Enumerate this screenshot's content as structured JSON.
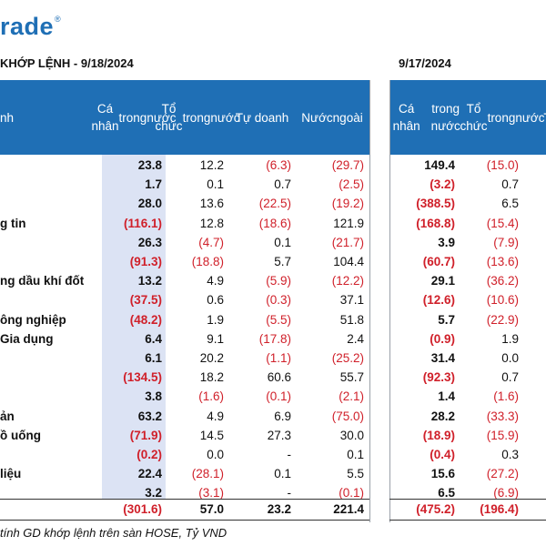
{
  "logo": "rade",
  "logo_mark": "®",
  "title_left": "KHỚP LỆNH - 9/18/2024",
  "title_right": "9/17/2024",
  "headers_left": [
    {
      "lines": [
        "nh"
      ]
    },
    {
      "lines": [
        "Cá nhân",
        "trong",
        "nước"
      ]
    },
    {
      "lines": [
        "Tổ chức",
        "trong",
        "nước"
      ]
    },
    {
      "lines": [
        "Tự doanh"
      ]
    },
    {
      "lines": [
        "Nước",
        "ngoài"
      ]
    }
  ],
  "headers_right": [
    {
      "lines": [
        "Cá nhân",
        "trong nước"
      ]
    },
    {
      "lines": [
        "Tổ chức",
        "trong",
        "nước"
      ]
    },
    {
      "lines": [
        "Tự"
      ]
    }
  ],
  "rows": [
    {
      "label": "",
      "v": [
        "23.8",
        "12.2",
        "(6.3)",
        "(29.7)"
      ],
      "p": [
        "149.4",
        "(15.0)"
      ]
    },
    {
      "label": "",
      "v": [
        "1.7",
        "0.1",
        "0.7",
        "(2.5)"
      ],
      "p": [
        "(3.2)",
        "0.7"
      ]
    },
    {
      "label": "",
      "v": [
        "28.0",
        "13.6",
        "(22.5)",
        "(19.2)"
      ],
      "p": [
        "(388.5)",
        "6.5"
      ]
    },
    {
      "label": "g tin",
      "v": [
        "(116.1)",
        "12.8",
        "(18.6)",
        "121.9"
      ],
      "p": [
        "(168.8)",
        "(15.4)"
      ]
    },
    {
      "label": "",
      "v": [
        "26.3",
        "(4.7)",
        "0.1",
        "(21.7)"
      ],
      "p": [
        "3.9",
        "(7.9)"
      ]
    },
    {
      "label": "",
      "v": [
        "(91.3)",
        "(18.8)",
        "5.7",
        "104.4"
      ],
      "p": [
        "(60.7)",
        "(13.6)"
      ]
    },
    {
      "label": "ng dầu khí đốt",
      "v": [
        "13.2",
        "4.9",
        "(5.9)",
        "(12.2)"
      ],
      "p": [
        "29.1",
        "(36.2)"
      ]
    },
    {
      "label": "",
      "v": [
        "(37.5)",
        "0.6",
        "(0.3)",
        "37.1"
      ],
      "p": [
        "(12.6)",
        "(10.6)"
      ]
    },
    {
      "label": "ông nghiệp",
      "v": [
        "(48.2)",
        "1.9",
        "(5.5)",
        "51.8"
      ],
      "p": [
        "5.7",
        "(22.9)"
      ]
    },
    {
      "label": "Gia dụng",
      "v": [
        "6.4",
        "9.1",
        "(17.8)",
        "2.4"
      ],
      "p": [
        "(0.9)",
        "1.9"
      ]
    },
    {
      "label": "",
      "v": [
        "6.1",
        "20.2",
        "(1.1)",
        "(25.2)"
      ],
      "p": [
        "31.4",
        "0.0"
      ]
    },
    {
      "label": "",
      "v": [
        "(134.5)",
        "18.2",
        "60.6",
        "55.7"
      ],
      "p": [
        "(92.3)",
        "0.7"
      ]
    },
    {
      "label": "",
      "v": [
        "3.8",
        "(1.6)",
        "(0.1)",
        "(2.1)"
      ],
      "p": [
        "1.4",
        "(1.6)"
      ]
    },
    {
      "label": "ản",
      "v": [
        "63.2",
        "4.9",
        "6.9",
        "(75.0)"
      ],
      "p": [
        "28.2",
        "(33.3)"
      ]
    },
    {
      "label": "ồ uống",
      "v": [
        "(71.9)",
        "14.5",
        "27.3",
        "30.0"
      ],
      "p": [
        "(18.9)",
        "(15.9)"
      ]
    },
    {
      "label": "",
      "v": [
        "(0.2)",
        "0.0",
        "-",
        "0.1"
      ],
      "p": [
        "(0.4)",
        "0.3"
      ]
    },
    {
      "label": "liệu",
      "v": [
        "22.4",
        "(28.1)",
        "0.1",
        "5.5"
      ],
      "p": [
        "15.6",
        "(27.2)"
      ]
    },
    {
      "label": "",
      "v": [
        "3.2",
        "(3.1)",
        "-",
        "(0.1)"
      ],
      "p": [
        "6.5",
        "(6.9)"
      ]
    }
  ],
  "total": {
    "v": [
      "(301.6)",
      "57.0",
      "23.2",
      "221.4"
    ],
    "p": [
      "(475.2)",
      "(196.4)"
    ]
  },
  "note": "tính GD khớp lệnh trên sàn HOSE, Tỷ VND",
  "colors": {
    "header_blue": "#1f6fb5",
    "column_tint": "#dce3f4",
    "negative_red": "#d0202a"
  }
}
